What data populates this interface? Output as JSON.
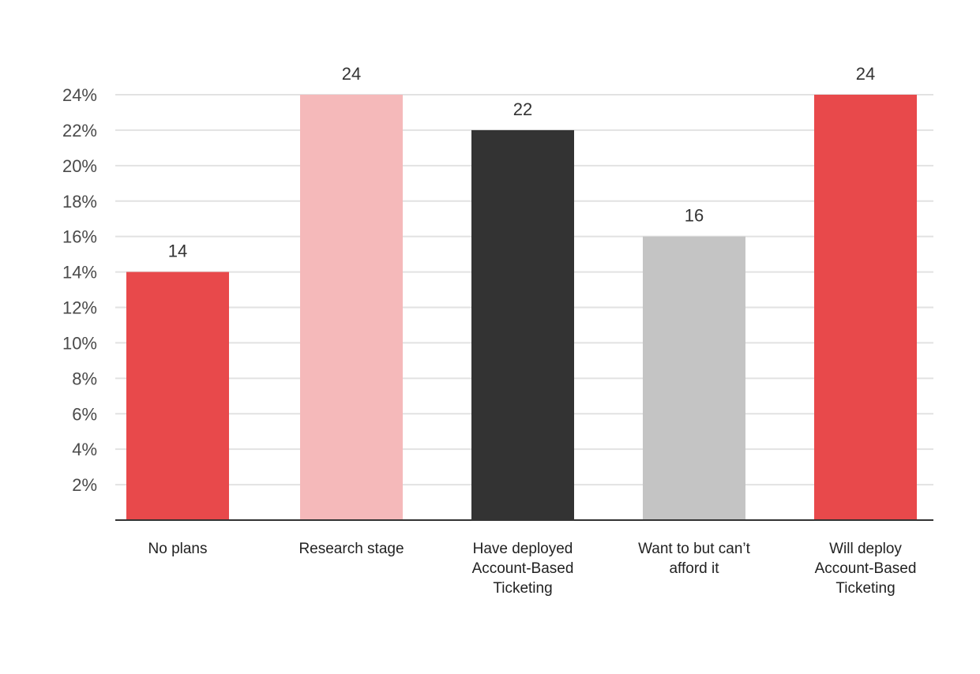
{
  "chart_data": {
    "type": "bar",
    "title": "",
    "xlabel": "",
    "ylabel": "",
    "ylim": [
      0,
      24
    ],
    "y_ticks": [
      2,
      4,
      6,
      8,
      10,
      12,
      14,
      16,
      18,
      20,
      22,
      24
    ],
    "y_tick_labels": [
      "2%",
      "4%",
      "6%",
      "8%",
      "10%",
      "12%",
      "14%",
      "16%",
      "18%",
      "20%",
      "22%",
      "24%"
    ],
    "grid": true,
    "categories": [
      [
        "No plans"
      ],
      [
        "Research stage"
      ],
      [
        "Have deployed",
        "Account-Based",
        "Ticketing"
      ],
      [
        "Want to but can’t",
        "afford it"
      ],
      [
        "Will deploy",
        "Account-Based",
        "Ticketing"
      ]
    ],
    "values": [
      14,
      24,
      22,
      16,
      24
    ],
    "data_labels": [
      "14",
      "24",
      "22",
      "16",
      "24"
    ],
    "bar_colors": [
      "#e8494b",
      "#f5b9ba",
      "#333333",
      "#c4c4c4",
      "#e8494b"
    ],
    "grid_color": "#e2e2e2",
    "axis_color": "#333333"
  }
}
